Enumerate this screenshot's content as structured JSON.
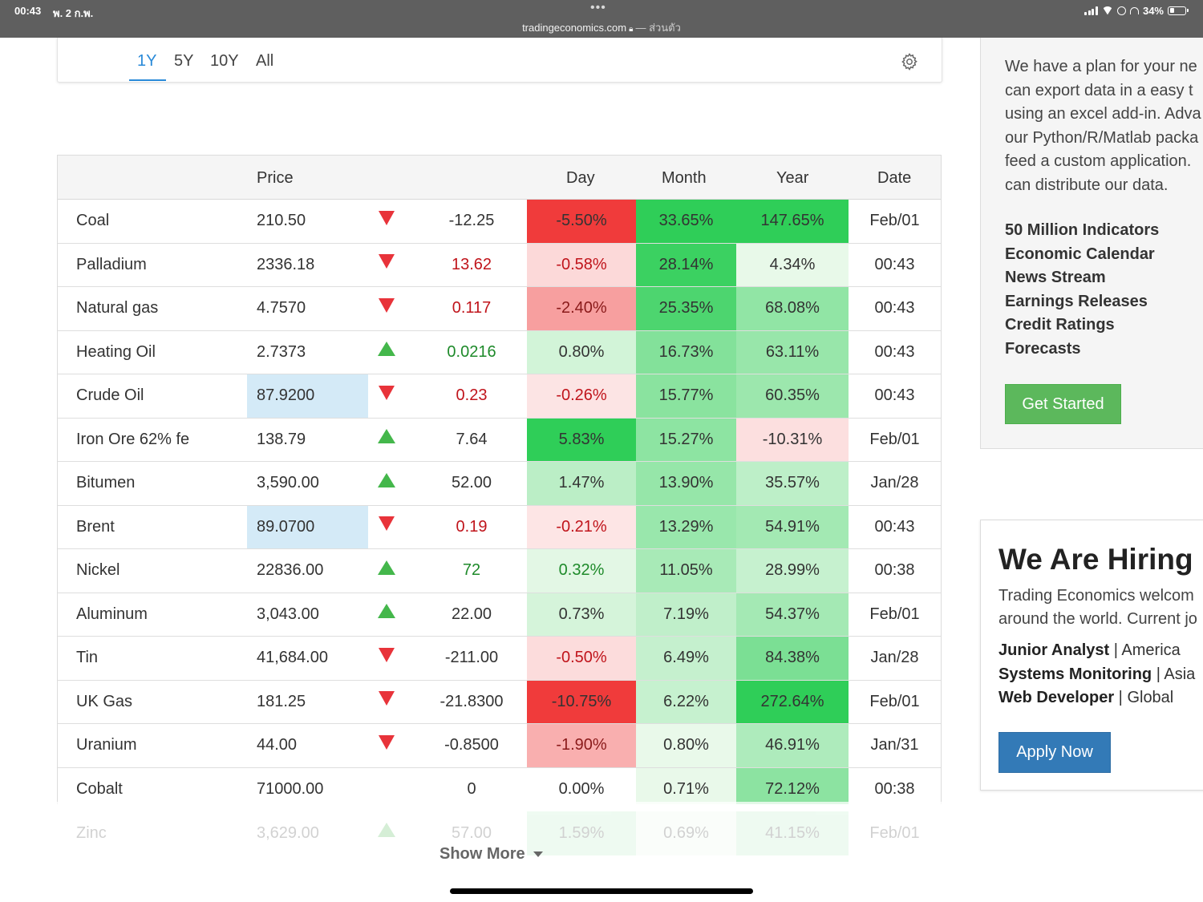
{
  "status_bar": {
    "time": "00:43",
    "date": "พ. 2 ก.พ.",
    "url": "tradingeconomics.com",
    "url_suffix": "— ส่วนตัว",
    "battery": "34%",
    "battery_level": 0.34
  },
  "range_tabs": {
    "items": [
      "1Y",
      "5Y",
      "10Y",
      "All"
    ],
    "active": "1Y"
  },
  "table": {
    "headers": {
      "price": "Price",
      "day": "Day",
      "month": "Month",
      "year": "Year",
      "date": "Date"
    },
    "rows": [
      {
        "name": "Coal",
        "price": "210.50",
        "dir": "down",
        "change": "-12.25",
        "day": "-5.50%",
        "month": "33.65%",
        "year": "147.65%",
        "date": "Feb/01"
      },
      {
        "name": "Palladium",
        "price": "2336.18",
        "dir": "down",
        "change": "13.62",
        "day": "-0.58%",
        "month": "28.14%",
        "year": "4.34%",
        "date": "00:43"
      },
      {
        "name": "Natural gas",
        "price": "4.7570",
        "dir": "down",
        "change": "0.117",
        "day": "-2.40%",
        "month": "25.35%",
        "year": "68.08%",
        "date": "00:43"
      },
      {
        "name": "Heating Oil",
        "price": "2.7373",
        "dir": "up",
        "change": "0.0216",
        "day": "0.80%",
        "month": "16.73%",
        "year": "63.11%",
        "date": "00:43"
      },
      {
        "name": "Crude Oil",
        "price": "87.9200",
        "dir": "down",
        "change": "0.23",
        "day": "-0.26%",
        "month": "15.77%",
        "year": "60.35%",
        "date": "00:43"
      },
      {
        "name": "Iron Ore 62% fe",
        "price": "138.79",
        "dir": "up",
        "change": "7.64",
        "day": "5.83%",
        "month": "15.27%",
        "year": "-10.31%",
        "date": "Feb/01"
      },
      {
        "name": "Bitumen",
        "price": "3,590.00",
        "dir": "up",
        "change": "52.00",
        "day": "1.47%",
        "month": "13.90%",
        "year": "35.57%",
        "date": "Jan/28"
      },
      {
        "name": "Brent",
        "price": "89.0700",
        "dir": "down",
        "change": "0.19",
        "day": "-0.21%",
        "month": "13.29%",
        "year": "54.91%",
        "date": "00:43"
      },
      {
        "name": "Nickel",
        "price": "22836.00",
        "dir": "up",
        "change": "72",
        "day": "0.32%",
        "month": "11.05%",
        "year": "28.99%",
        "date": "00:38"
      },
      {
        "name": "Aluminum",
        "price": "3,043.00",
        "dir": "up",
        "change": "22.00",
        "day": "0.73%",
        "month": "7.19%",
        "year": "54.37%",
        "date": "Feb/01"
      },
      {
        "name": "Tin",
        "price": "41,684.00",
        "dir": "down",
        "change": "-211.00",
        "day": "-0.50%",
        "month": "6.49%",
        "year": "84.38%",
        "date": "Jan/28"
      },
      {
        "name": "UK Gas",
        "price": "181.25",
        "dir": "down",
        "change": "-21.8300",
        "day": "-10.75%",
        "month": "6.22%",
        "year": "272.64%",
        "date": "Feb/01"
      },
      {
        "name": "Uranium",
        "price": "44.00",
        "dir": "down",
        "change": "-0.8500",
        "day": "-1.90%",
        "month": "0.80%",
        "year": "46.91%",
        "date": "Jan/31"
      },
      {
        "name": "Cobalt",
        "price": "71000.00",
        "dir": "none",
        "change": "0",
        "day": "0.00%",
        "month": "0.71%",
        "year": "72.12%",
        "date": "00:38"
      }
    ],
    "faded_row": {
      "name": "Zinc",
      "price": "3,629.00",
      "dir": "up",
      "change": "57.00",
      "day": "1.59%",
      "month": "0.69%",
      "year": "41.15%",
      "date": "Feb/01"
    },
    "show_more": "Show More",
    "colors": {
      "red_text": "#c0141b",
      "green_text": "#1e8a2a",
      "neutral_text": "#333333",
      "price_highlight": "#d4eaf7"
    },
    "price_highlight_rows": [
      "Crude Oil",
      "Brent"
    ]
  },
  "sidebar": {
    "plan_text": [
      "We have a plan for your ne",
      "can export data in a easy t",
      "using an excel add-in. Adva",
      "our Python/R/Matlab packa",
      "feed a custom application.",
      "can distribute our data."
    ],
    "features": [
      "50 Million Indicators",
      "Economic Calendar",
      "News Stream",
      "Earnings Releases",
      "Credit Ratings",
      "Forecasts"
    ],
    "get_started": "Get Started",
    "hiring_title": "We Are Hiring",
    "hiring_text": [
      "Trading Economics welcom",
      "around the world. Current jo"
    ],
    "jobs": [
      {
        "title": "Junior Analyst",
        "region": "America"
      },
      {
        "title": "Systems Monitoring",
        "region": "Asia"
      },
      {
        "title": "Web Developer",
        "region": "Global"
      }
    ],
    "apply": "Apply Now"
  }
}
